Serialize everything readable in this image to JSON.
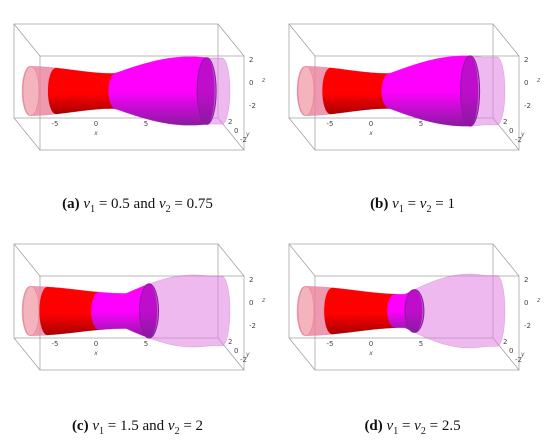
{
  "figure": {
    "panels": [
      {
        "id": "a",
        "caption": {
          "letter": "(a)",
          "v1": "0.5",
          "conj": "and",
          "v2": "0.75",
          "style": "separate"
        },
        "left_radius": 0.56,
        "neck_pos": 0.44,
        "neck_radius": 0.4,
        "right_radius": 0.78,
        "red_end": 0.45,
        "magenta_end": 0.92,
        "right_opaque": true
      },
      {
        "id": "b",
        "caption": {
          "letter": "(b)",
          "v1": "1",
          "conj": "",
          "v2": "1",
          "style": "equal"
        },
        "left_radius": 0.56,
        "neck_pos": 0.44,
        "neck_radius": 0.4,
        "right_radius": 0.8,
        "red_end": 0.44,
        "magenta_end": 0.86,
        "right_opaque": false
      },
      {
        "id": "c",
        "caption": {
          "letter": "(c)",
          "v1": "1.5",
          "conj": "and",
          "v2": "2",
          "style": "separate"
        },
        "left_radius": 0.56,
        "neck_pos": 0.5,
        "neck_radius": 0.4,
        "right_radius": 0.82,
        "red_end": 0.36,
        "magenta_end": 0.62,
        "right_opaque": false
      },
      {
        "id": "d",
        "caption": {
          "letter": "(d)",
          "v1": "2.5",
          "conj": "",
          "v2": "2.5",
          "style": "equal"
        },
        "left_radius": 0.56,
        "neck_pos": 0.52,
        "neck_radius": 0.38,
        "right_radius": 0.84,
        "red_end": 0.47,
        "magenta_end": 0.57,
        "right_opaque": false
      }
    ],
    "axes": {
      "x_ticks": [
        "-5",
        "0",
        "5"
      ],
      "y_ticks": [
        "0",
        "-2"
      ],
      "z_ticks": [
        "2",
        "0",
        "-2"
      ],
      "x_label": "x",
      "y_label": "y",
      "z_label": "z",
      "y_tick_extra": "2"
    },
    "colors": {
      "red": "#ff0000",
      "red_dark": "#a80000",
      "magenta": "#ff00ff",
      "magenta_dark": "#8a1aa0",
      "translucent": "#e080e0",
      "pale_red": "#f08080"
    }
  }
}
